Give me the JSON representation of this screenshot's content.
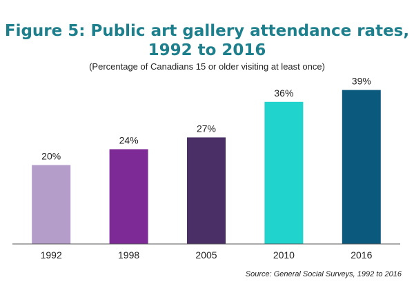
{
  "chart_data": {
    "type": "bar",
    "title_lines": [
      "Figure 5: Public art gallery attendance rates,",
      "1992 to 2016"
    ],
    "subtitle": "(Percentage of Canadians 15 or older visiting at least once)",
    "categories": [
      "1992",
      "1998",
      "2005",
      "2010",
      "2016"
    ],
    "values": [
      20,
      24,
      27,
      36,
      39
    ],
    "data_labels": [
      "20%",
      "24%",
      "27%",
      "36%",
      "39%"
    ],
    "bar_colors": [
      "#b49dc9",
      "#7d2a96",
      "#4a2f67",
      "#20d4cd",
      "#0b5a7e"
    ],
    "ylim": [
      0,
      44
    ],
    "grid": false,
    "legend": "none",
    "source": "Source: General Social Surveys, 1992 to 2016"
  },
  "colors": {
    "title": "#1d7f8c",
    "axis": "#555555"
  }
}
